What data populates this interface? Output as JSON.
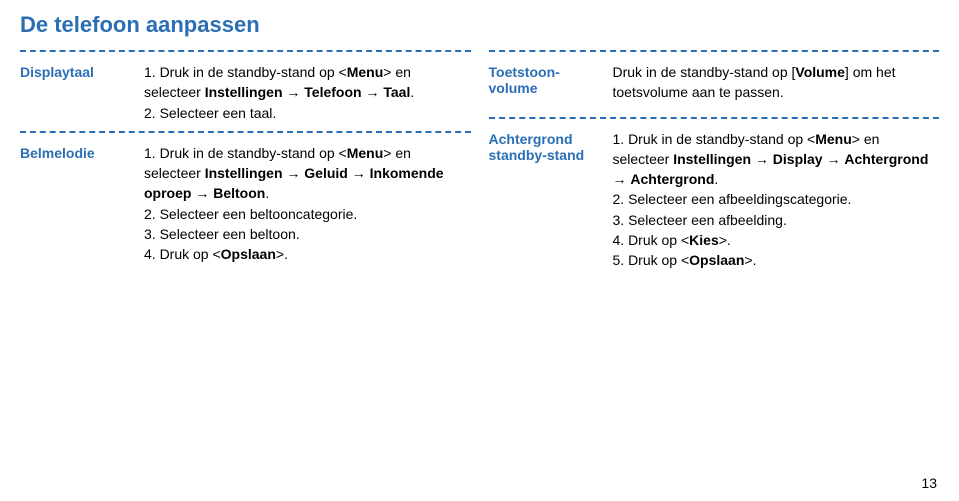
{
  "title": "De telefoon aanpassen",
  "pageNumber": "13",
  "left": {
    "sec1": {
      "label": "Displaytaal",
      "li1_pre": "1. Druk in de standby-stand op <",
      "li1_menu": "Menu",
      "li1_mid": "> en selecteer ",
      "li1_b1": "Instellingen",
      "li1_arr1": " → ",
      "li1_b2": "Telefoon",
      "li1_arr2": " → ",
      "li1_b3": "Taal",
      "li1_end": ".",
      "li2": "2. Selecteer een taal."
    },
    "sec2": {
      "label": "Belmelodie",
      "li1_pre": "1. Druk in de standby-stand op <",
      "li1_menu": "Menu",
      "li1_mid": "> en selecteer ",
      "li1_b1": "Instellingen",
      "li1_arr1": " → ",
      "li1_b2": "Geluid",
      "li1_arr2": " → ",
      "li1_b3": "Inkomende oproep",
      "li1_arr3": " → ",
      "li1_b4": "Beltoon",
      "li1_end": ".",
      "li2": "2. Selecteer een beltooncategorie.",
      "li3": "3. Selecteer een beltoon.",
      "li4_pre": "4. Druk op <",
      "li4_b": "Opslaan",
      "li4_end": ">."
    }
  },
  "right": {
    "sec1": {
      "label": "Toetstoon-volume",
      "p_pre": "Druk in de standby-stand op [",
      "p_b": "Volume",
      "p_end": "] om het toetsvolume aan te passen."
    },
    "sec2": {
      "label": "Achtergrond standby-stand",
      "li1_pre": "1. Druk in de standby-stand op <",
      "li1_menu": "Menu",
      "li1_mid": "> en selecteer ",
      "li1_b1": "Instellingen",
      "li1_arr1": " → ",
      "li1_b2": "Display",
      "li1_arr2": " → ",
      "li1_b3": "Achtergrond",
      "li1_arr3": " → ",
      "li1_b4": "Achtergrond",
      "li1_end": ".",
      "li2": "2. Selecteer een afbeeldingscategorie.",
      "li3": "3. Selecteer een afbeelding.",
      "li4_pre": "4. Druk op <",
      "li4_b": "Kies",
      "li4_end": ">.",
      "li5_pre": "5. Druk op <",
      "li5_b": "Opslaan",
      "li5_end": ">."
    }
  }
}
